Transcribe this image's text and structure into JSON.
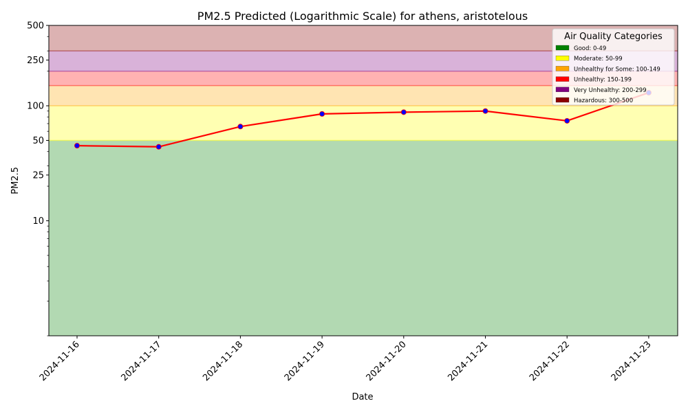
{
  "chart_data": {
    "type": "line",
    "title": "PM2.5 Predicted (Logarithmic Scale) for athens, aristotelous",
    "xlabel": "Date",
    "ylabel": "PM2.5",
    "y_scale": "log",
    "ylim": [
      1,
      500
    ],
    "y_ticks": [
      {
        "value": 10,
        "label": "10"
      },
      {
        "value": 25,
        "label": "25"
      },
      {
        "value": 50,
        "label": "50"
      },
      {
        "value": 100,
        "label": "100"
      },
      {
        "value": 250,
        "label": "250"
      },
      {
        "value": 500,
        "label": "500"
      }
    ],
    "categories": [
      "2024-11-16",
      "2024-11-17",
      "2024-11-18",
      "2024-11-19",
      "2024-11-20",
      "2024-11-21",
      "2024-11-22",
      "2024-11-23"
    ],
    "series": [
      {
        "values": [
          45,
          44,
          66,
          85,
          88,
          90,
          74,
          130
        ],
        "line_color": "#ff0000",
        "marker_color": "#0000ff"
      }
    ],
    "bands": [
      {
        "from": 0,
        "to": 50,
        "color": "#008000"
      },
      {
        "from": 50,
        "to": 100,
        "color": "#ffff00"
      },
      {
        "from": 100,
        "to": 150,
        "color": "#ffa500"
      },
      {
        "from": 150,
        "to": 200,
        "color": "#ff0000"
      },
      {
        "from": 200,
        "to": 300,
        "color": "#800080"
      },
      {
        "from": 300,
        "to": 500,
        "color": "#8b0000"
      }
    ],
    "legend": {
      "title": "Air Quality Categories",
      "placement": "top-right",
      "entries": [
        {
          "label": "Good: 0-49",
          "color": "#008000"
        },
        {
          "label": "Moderate: 50-99",
          "color": "#ffff00"
        },
        {
          "label": "Unhealthy for Some: 100-149",
          "color": "#ffa500"
        },
        {
          "label": "Unhealthy: 150-199",
          "color": "#ff0000"
        },
        {
          "label": "Very Unhealthy: 200-299",
          "color": "#800080"
        },
        {
          "label": "Hazardous: 300-500",
          "color": "#8b0000"
        }
      ]
    },
    "grid": false
  }
}
